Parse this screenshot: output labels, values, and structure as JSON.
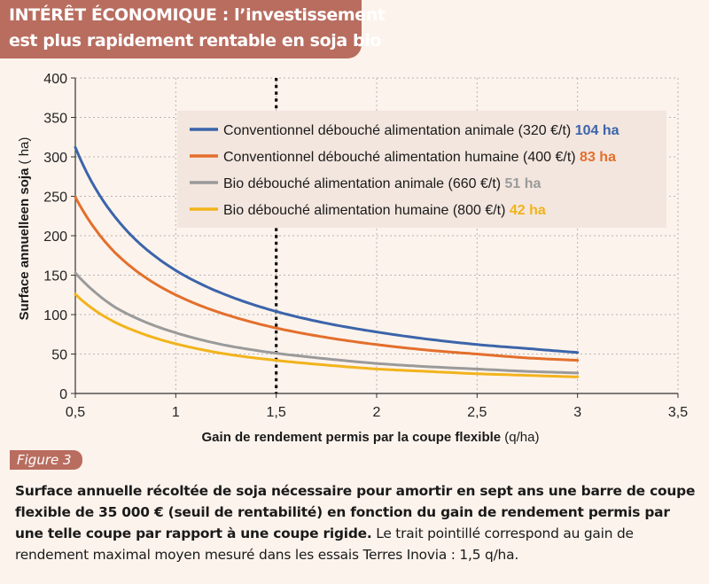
{
  "title": {
    "line1": "INTÉRÊT ÉCONOMIQUE : l’investissement",
    "line2": "est plus rapidement rentable en soja bio"
  },
  "figure_label": "Figure 3",
  "caption": {
    "bold": "Surface annuelle récoltée de soja nécessaire pour amortir en sept ans une barre de coupe flexible de 35 000 € (seuil de rentabilité) en fonction du gain de rendement permis par une telle coupe par rapport à une coupe rigide.",
    "normal": " Le trait pointillé correspond au gain de rendement maximal moyen mesuré dans les essais Terres Inovia : 1,5 q/ha."
  },
  "chart_data": {
    "type": "line",
    "title": "",
    "xlabel": "Gain de rendement permis par la coupe flexible",
    "xlabel_unit": "(q/ha)",
    "ylabel": "Surface annuelleen soja",
    "ylabel_unit": "( ha)",
    "xlim": [
      0.5,
      3.5
    ],
    "ylim": [
      0,
      400
    ],
    "x_ticks": [
      0.5,
      1,
      1.5,
      2,
      2.5,
      3,
      3.5
    ],
    "x_tick_labels": [
      "0,5",
      "1",
      "1,5",
      "2",
      "2,5",
      "3",
      "3,5"
    ],
    "y_ticks": [
      0,
      50,
      100,
      150,
      200,
      250,
      300,
      350,
      400
    ],
    "y_tick_labels": [
      "0",
      "50",
      "100",
      "150",
      "200",
      "250",
      "300",
      "350",
      "400"
    ],
    "grid": true,
    "legend_position": "top-right",
    "reference_line": {
      "x": 1.5,
      "style": "dotted"
    },
    "x": [
      0.5,
      0.6,
      0.7,
      0.8,
      1.0,
      1.25,
      1.5,
      1.75,
      2.0,
      2.25,
      2.5,
      2.75,
      3.0
    ],
    "series": [
      {
        "name": "Conventionnel débouché alimentation animale (320 €/t)",
        "highlight": "104 ha",
        "color": "#3b64aa",
        "values": [
          312,
          260,
          223,
          195,
          156,
          125,
          104,
          89,
          78,
          69,
          62,
          57,
          52
        ]
      },
      {
        "name": "Conventionnel débouché alimentation humaine (400 €/t)",
        "highlight": "83 ha",
        "color": "#e36f2c",
        "values": [
          249,
          208,
          178,
          156,
          125,
          100,
          83,
          71,
          62,
          55,
          50,
          45,
          42
        ]
      },
      {
        "name": "Bio débouché alimentation animale (660 €/t)",
        "highlight": "51 ha",
        "color": "#9a9a9a",
        "values": [
          153,
          128,
          109,
          96,
          77,
          61,
          51,
          44,
          38,
          34,
          31,
          28,
          26
        ]
      },
      {
        "name": "Bio débouché alimentation humaine (800 €/t)",
        "highlight": "42 ha",
        "color": "#f2b31b",
        "values": [
          126,
          105,
          90,
          79,
          63,
          50,
          42,
          36,
          31,
          28,
          25,
          23,
          21
        ]
      }
    ]
  }
}
